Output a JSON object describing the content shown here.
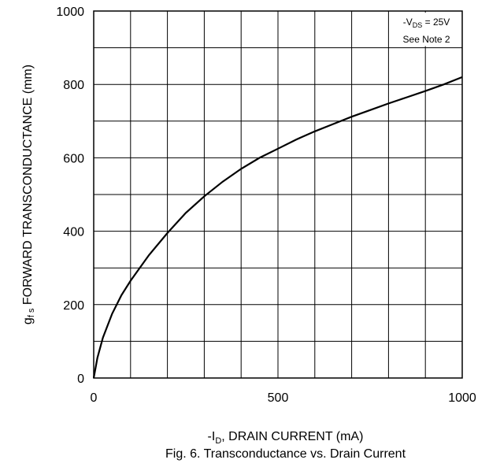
{
  "chart_data": {
    "type": "line",
    "xlabel": {
      "prefix": "-I",
      "sub": "D",
      "rest": ", DRAIN CURRENT (mA)"
    },
    "ylabel": {
      "prefix": "g",
      "sub": "f s",
      "rest": " FORWARD TRANSCONDUCTANCE (mm)"
    },
    "caption": "Fig. 6.  Transconductance vs. Drain Current",
    "xlim": [
      0,
      1000
    ],
    "ylim": [
      0,
      1000
    ],
    "x_ticks": [
      0,
      500,
      1000
    ],
    "y_ticks": [
      0,
      200,
      400,
      600,
      800,
      1000
    ],
    "grid": true,
    "grid_divisions": {
      "x": 10,
      "y": 10
    },
    "note": {
      "line1_prefix": "-V",
      "line1_sub": "DS",
      "line1_rest": " = 25V",
      "line2": "See Note 2"
    },
    "series": [
      {
        "x": [
          0,
          10,
          25,
          50,
          75,
          100,
          150,
          200,
          250,
          300,
          350,
          400,
          450,
          500,
          550,
          600,
          650,
          700,
          750,
          800,
          850,
          900,
          950,
          1000
        ],
        "y": [
          0,
          55,
          110,
          175,
          225,
          265,
          335,
          395,
          450,
          495,
          535,
          570,
          600,
          625,
          650,
          672,
          692,
          712,
          730,
          748,
          765,
          782,
          800,
          820
        ]
      }
    ],
    "colors": {
      "line": "#000000",
      "grid": "#000000"
    }
  }
}
